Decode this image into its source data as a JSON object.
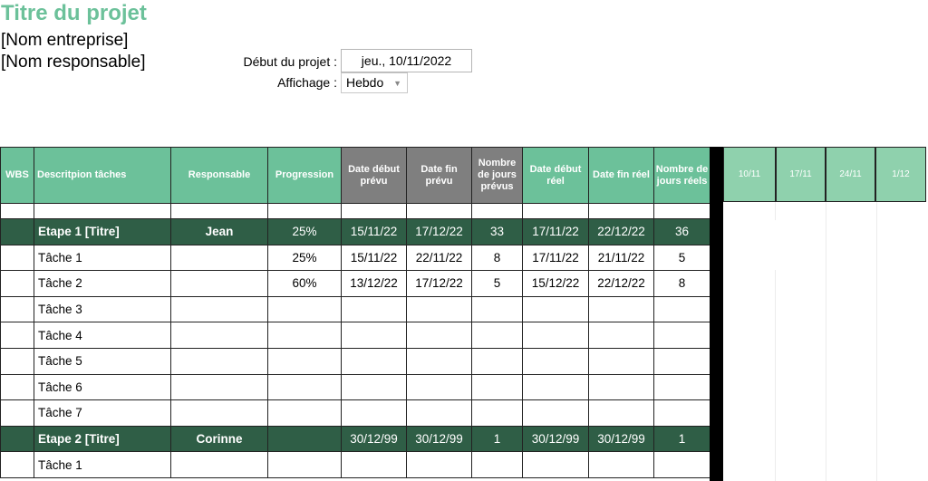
{
  "header": {
    "title": "Titre du projet",
    "company": "[Nom entreprise]",
    "manager": "[Nom responsable]",
    "start_label": "Début du projet :",
    "start_value": "jeu., 10/11/2022",
    "view_label": "Affichage :",
    "view_value": "Hebdo"
  },
  "table": {
    "headers": {
      "wbs": "WBS",
      "desc": "Descritpion tâches",
      "owner": "Responsable",
      "progress": "Progression",
      "plan_start": "Date début prévu",
      "plan_end": "Date fin prévu",
      "plan_days": "Nombre de jours prévus",
      "real_start": "Date début réel",
      "real_end": "Date fin réel",
      "real_days": "Nombre de jours réels"
    },
    "rows": [
      {
        "desc": "Etape 1 [Titre]",
        "owner": "Jean",
        "progress": "25%",
        "ps": "15/11/22",
        "pe": "17/12/22",
        "pd": "33",
        "rs": "17/11/22",
        "re": "22/12/22",
        "rd": "36"
      },
      {
        "desc": "Tâche 1",
        "owner": "",
        "progress": "25%",
        "ps": "15/11/22",
        "pe": "22/11/22",
        "pd": "8",
        "rs": "17/11/22",
        "re": "21/11/22",
        "rd": "5"
      },
      {
        "desc": "Tâche 2",
        "owner": "",
        "progress": "60%",
        "ps": "13/12/22",
        "pe": "17/12/22",
        "pd": "5",
        "rs": "15/12/22",
        "re": "22/12/22",
        "rd": "8"
      },
      {
        "desc": "Tâche 3"
      },
      {
        "desc": "Tâche 4"
      },
      {
        "desc": "Tâche 5"
      },
      {
        "desc": "Tâche 6"
      },
      {
        "desc": "Tâche 7"
      },
      {
        "desc": "Etape 2 [Titre]",
        "owner": "Corinne",
        "progress": "",
        "ps": "30/12/99",
        "pe": "30/12/99",
        "pd": "1",
        "rs": "30/12/99",
        "re": "30/12/99",
        "rd": "1"
      },
      {
        "desc": "Tâche 1"
      }
    ]
  },
  "gantt": {
    "weeks": [
      "10/11",
      "17/11",
      "24/11",
      "1/12"
    ]
  },
  "colors": {
    "accent": "#6cc19a",
    "stage_row": "#2f5e46",
    "planned_header": "#7f7f7f",
    "gantt_header": "#8fd1ad"
  }
}
